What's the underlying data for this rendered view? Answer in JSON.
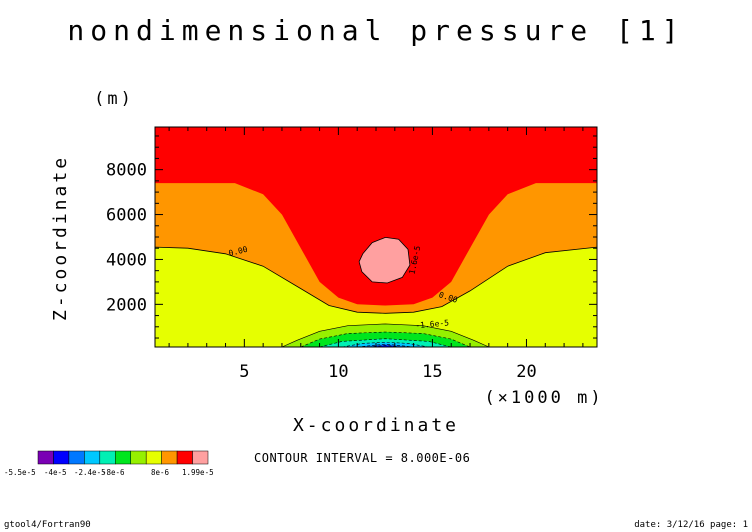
{
  "chart_data": {
    "type": "contour",
    "title": "nondimensional pressure [1]",
    "xlabel": "X-coordinate",
    "x_unit": "(×1000 m)",
    "ylabel": "Z-coordinate",
    "y_unit": "(m)",
    "xlim": [
      0.25,
      23.75
    ],
    "ylim": [
      100,
      9900
    ],
    "x_ticks": [
      5,
      10,
      15,
      20
    ],
    "y_ticks": [
      2000,
      4000,
      6000,
      8000
    ],
    "x_minor_step": 1,
    "y_minor_step": 500,
    "contour_interval_text": "CONTOUR INTERVAL = 8.000E-06",
    "contour_labels": [
      {
        "text": "0.00",
        "x": 4.7,
        "z": 4250,
        "angle": 14
      },
      {
        "text": "0.00",
        "x": 15.8,
        "z": 2200,
        "angle": -18
      },
      {
        "text": "1.6e-5",
        "x": 14.2,
        "z": 3950,
        "angle": 78
      },
      {
        "text": "-1.6e-5",
        "x": 15.0,
        "z": 1000,
        "angle": 5
      }
    ],
    "colorbar": {
      "colors": [
        "#7a00b4",
        "#0000ff",
        "#0078ff",
        "#00c8ff",
        "#00f0b4",
        "#00e61e",
        "#96f000",
        "#e6ff00",
        "#ff9600",
        "#ff0000",
        "#ffa0a0"
      ],
      "labels": [
        "-5.5e-5",
        "-4e-5",
        "-2.4e-5",
        "-8e-6",
        "8e-6",
        "1.99e-5"
      ]
    },
    "fields": {
      "red_top_boundary": [
        [
          0.25,
          7400
        ],
        [
          4.5,
          7400
        ],
        [
          6.0,
          6900
        ],
        [
          7.0,
          6000
        ],
        [
          8.0,
          4500
        ],
        [
          9.0,
          3000
        ],
        [
          10.0,
          2300
        ],
        [
          11.0,
          2000
        ],
        [
          12.5,
          1950
        ],
        [
          14.0,
          2000
        ],
        [
          15.0,
          2300
        ],
        [
          16.0,
          3000
        ],
        [
          17.0,
          4500
        ],
        [
          18.0,
          6000
        ],
        [
          19.0,
          6900
        ],
        [
          20.5,
          7400
        ],
        [
          23.75,
          7400
        ]
      ],
      "orange_boundary": [
        [
          0.25,
          4550
        ],
        [
          2.0,
          4500
        ],
        [
          4.0,
          4250
        ],
        [
          6.0,
          3700
        ],
        [
          8.0,
          2700
        ],
        [
          9.5,
          1950
        ],
        [
          11.0,
          1650
        ],
        [
          12.5,
          1600
        ],
        [
          14.0,
          1650
        ],
        [
          15.5,
          1900
        ],
        [
          17.0,
          2600
        ],
        [
          19.0,
          3700
        ],
        [
          21.0,
          4300
        ],
        [
          23.75,
          4550
        ]
      ],
      "pink_blob": [
        [
          11.3,
          4250
        ],
        [
          11.8,
          4750
        ],
        [
          12.5,
          4980
        ],
        [
          13.2,
          4900
        ],
        [
          13.7,
          4450
        ],
        [
          13.8,
          3750
        ],
        [
          13.4,
          3200
        ],
        [
          12.6,
          2950
        ],
        [
          11.8,
          3000
        ],
        [
          11.25,
          3450
        ],
        [
          11.1,
          3900
        ]
      ],
      "low_lobes": [
        {
          "color": "#96f000",
          "points": [
            [
              7.0,
              100
            ],
            [
              7.8,
              400
            ],
            [
              9.0,
              800
            ],
            [
              10.5,
              1050
            ],
            [
              12.5,
              1130
            ],
            [
              14.5,
              1050
            ],
            [
              16.0,
              800
            ],
            [
              17.2,
              400
            ],
            [
              18.0,
              100
            ]
          ]
        },
        {
          "color": "#00e61e",
          "points": [
            [
              8.0,
              100
            ],
            [
              9.0,
              450
            ],
            [
              10.5,
              700
            ],
            [
              12.5,
              770
            ],
            [
              14.5,
              700
            ],
            [
              16.0,
              450
            ],
            [
              17.0,
              100
            ]
          ]
        },
        {
          "color": "#00f0b4",
          "points": [
            [
              9.0,
              100
            ],
            [
              10.2,
              350
            ],
            [
              12.5,
              470
            ],
            [
              14.8,
              350
            ],
            [
              16.0,
              100
            ]
          ]
        },
        {
          "color": "#00c8ff",
          "points": [
            [
              10.2,
              100
            ],
            [
              11.3,
              260
            ],
            [
              12.5,
              310
            ],
            [
              13.7,
              260
            ],
            [
              14.8,
              100
            ]
          ]
        },
        {
          "color": "#0078ff",
          "points": [
            [
              11.0,
              100
            ],
            [
              12.5,
              230
            ],
            [
              14.0,
              100
            ]
          ]
        },
        {
          "color": "#0000ff",
          "points": [
            [
              11.6,
              100
            ],
            [
              12.5,
              170
            ],
            [
              13.4,
              100
            ]
          ]
        }
      ]
    }
  },
  "footer": {
    "left": "gtool4/Fortran90",
    "right": "date: 3/12/16 page: 1"
  }
}
